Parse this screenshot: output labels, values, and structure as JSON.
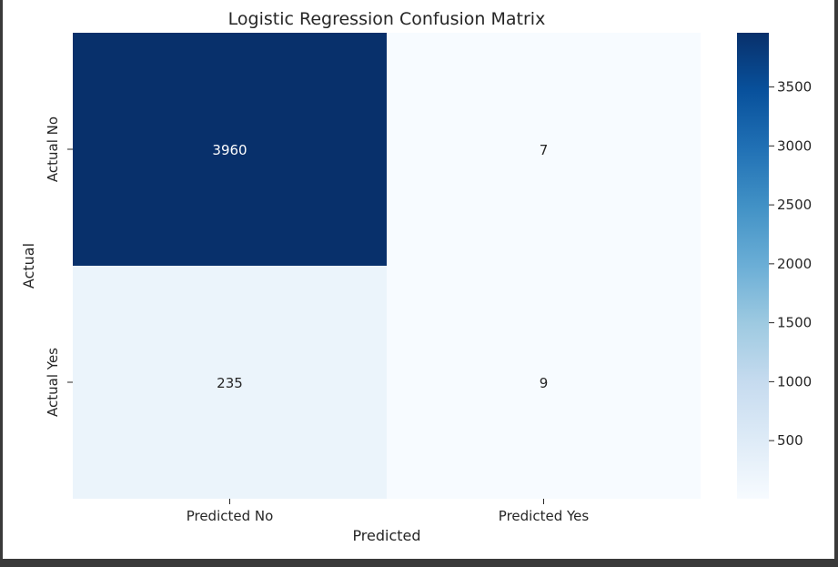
{
  "chart_data": {
    "type": "heatmap",
    "title": "Logistic Regression Confusion Matrix",
    "xlabel": "Predicted",
    "ylabel": "Actual",
    "x_categories": [
      "Predicted No",
      "Predicted Yes"
    ],
    "y_categories": [
      "Actual No",
      "Actual Yes"
    ],
    "values": [
      [
        3960,
        7
      ],
      [
        235,
        9
      ]
    ],
    "colormap": "Blues",
    "color_range": [
      7,
      3960
    ],
    "colorbar_ticks": [
      500,
      1000,
      1500,
      2000,
      2500,
      3000,
      3500
    ],
    "colorbar_tick_labels": [
      "500",
      "1000",
      "1500",
      "2000",
      "2500",
      "3000",
      "3500"
    ],
    "annotation_colors": {
      "dark_cell": "#ffffff",
      "light_cell": "#262626"
    },
    "grid": false
  }
}
